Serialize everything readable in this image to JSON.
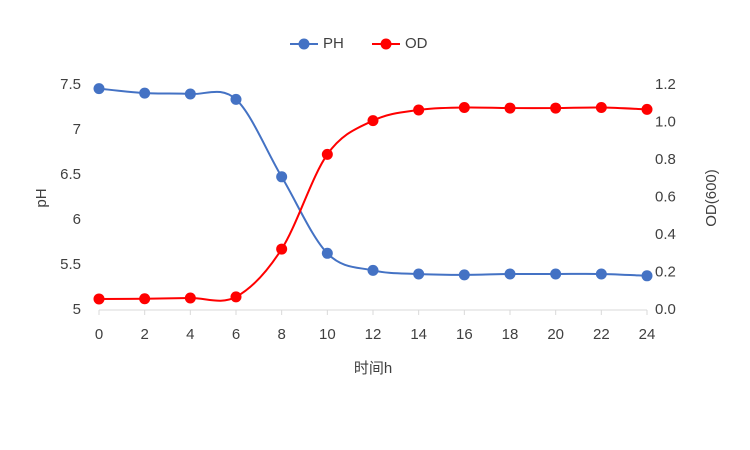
{
  "chart_data": {
    "type": "line",
    "x_label": "时间h",
    "y_label": "pH",
    "y2_label": "OD(600)",
    "x": [
      0,
      2,
      4,
      6,
      8,
      10,
      12,
      14,
      16,
      18,
      20,
      22,
      24
    ],
    "xlim": [
      0,
      24
    ],
    "xticks": [
      0,
      2,
      4,
      6,
      8,
      10,
      12,
      14,
      16,
      18,
      20,
      22,
      24
    ],
    "ylim": [
      5,
      7.5
    ],
    "yticks": [
      5,
      5.5,
      6,
      6.5,
      7,
      7.5
    ],
    "y2lim": [
      0,
      1.2
    ],
    "y2ticks": [
      {
        "value": 0,
        "label": "0.0"
      },
      0.2,
      0.4,
      0.6,
      0.8,
      {
        "value": 1,
        "label": "1.0"
      },
      1.2
    ],
    "grid": false,
    "legend": "top",
    "smooth": true,
    "series": [
      {
        "name": "PH",
        "color": "#4472c4",
        "values": [
          7.46,
          7.41,
          7.4,
          7.34,
          6.48,
          5.63,
          5.44,
          5.4,
          5.39,
          5.4,
          5.4,
          5.4,
          5.38
        ]
      },
      {
        "name": "OD",
        "color": "#ff0000",
        "axis": "y2",
        "values": [
          0.059,
          0.06,
          0.064,
          0.07,
          0.325,
          0.83,
          1.01,
          1.067,
          1.08,
          1.077,
          1.077,
          1.08,
          1.07
        ]
      }
    ]
  }
}
